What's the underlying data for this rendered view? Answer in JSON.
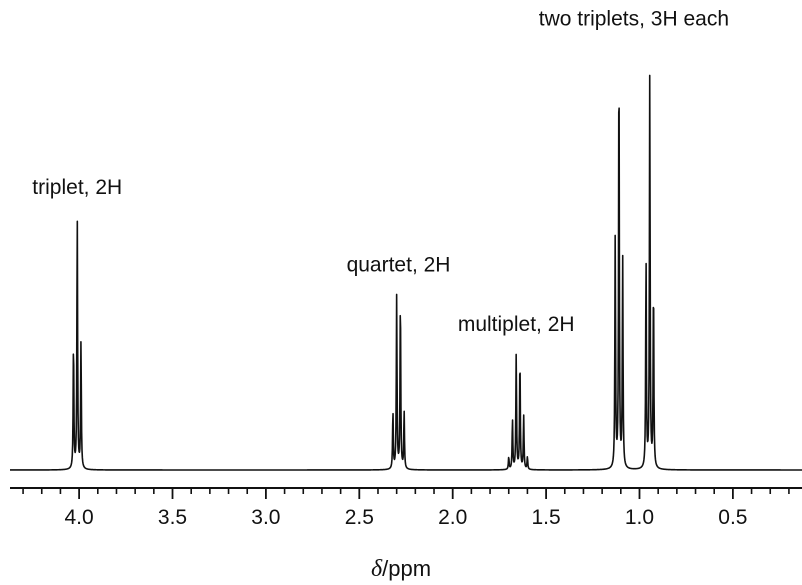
{
  "chart_data": {
    "type": "line",
    "title": "",
    "xlabel_symbol": "δ",
    "xlabel_unit": "/ppm",
    "xlim": [
      4.37,
      0.13
    ],
    "x_reversed": true,
    "ylim": [
      0,
      100
    ],
    "grid": false,
    "legend": "none",
    "x_ticks": [
      4.0,
      3.5,
      3.0,
      2.5,
      2.0,
      1.5,
      1.0,
      0.5
    ],
    "x_tick_labels": [
      "4.0",
      "3.5",
      "3.0",
      "2.5",
      "2.0",
      "1.5",
      "1.0",
      "0.5"
    ],
    "x_minor_step": 0.1,
    "line_width": 0.0022,
    "series": [
      {
        "values": [
          {
            "x": 4.03,
            "y": 30.5
          },
          {
            "x": 4.01,
            "y": 60.7
          },
          {
            "x": 3.99,
            "y": 30.5
          },
          {
            "x": 2.32,
            "y": 13.8
          },
          {
            "x": 2.3,
            "y": 41.4
          },
          {
            "x": 2.28,
            "y": 41.4
          },
          {
            "x": 2.26,
            "y": 13.8
          },
          {
            "x": 1.7,
            "y": 3.0
          },
          {
            "x": 1.68,
            "y": 12.0
          },
          {
            "x": 1.66,
            "y": 27.5
          },
          {
            "x": 1.64,
            "y": 26.8
          },
          {
            "x": 1.62,
            "y": 12.8
          },
          {
            "x": 1.6,
            "y": 3.0
          },
          {
            "x": 1.13,
            "y": 55.5
          },
          {
            "x": 1.11,
            "y": 101.0
          },
          {
            "x": 1.09,
            "y": 50.4
          },
          {
            "x": 0.965,
            "y": 50.4
          },
          {
            "x": 0.945,
            "y": 94.3
          },
          {
            "x": 0.925,
            "y": 44.6
          }
        ]
      }
    ],
    "annotations": [
      {
        "text": "triplet, 2H",
        "x": 4.01,
        "y": 66
      },
      {
        "text": "quartet, 2H",
        "x": 2.29,
        "y": 47.5
      },
      {
        "text": "multiplet, 2H",
        "x": 1.66,
        "y": 33.2
      },
      {
        "text": "two triplets, 3H each",
        "x": 1.03,
        "y": 106.3
      }
    ]
  }
}
